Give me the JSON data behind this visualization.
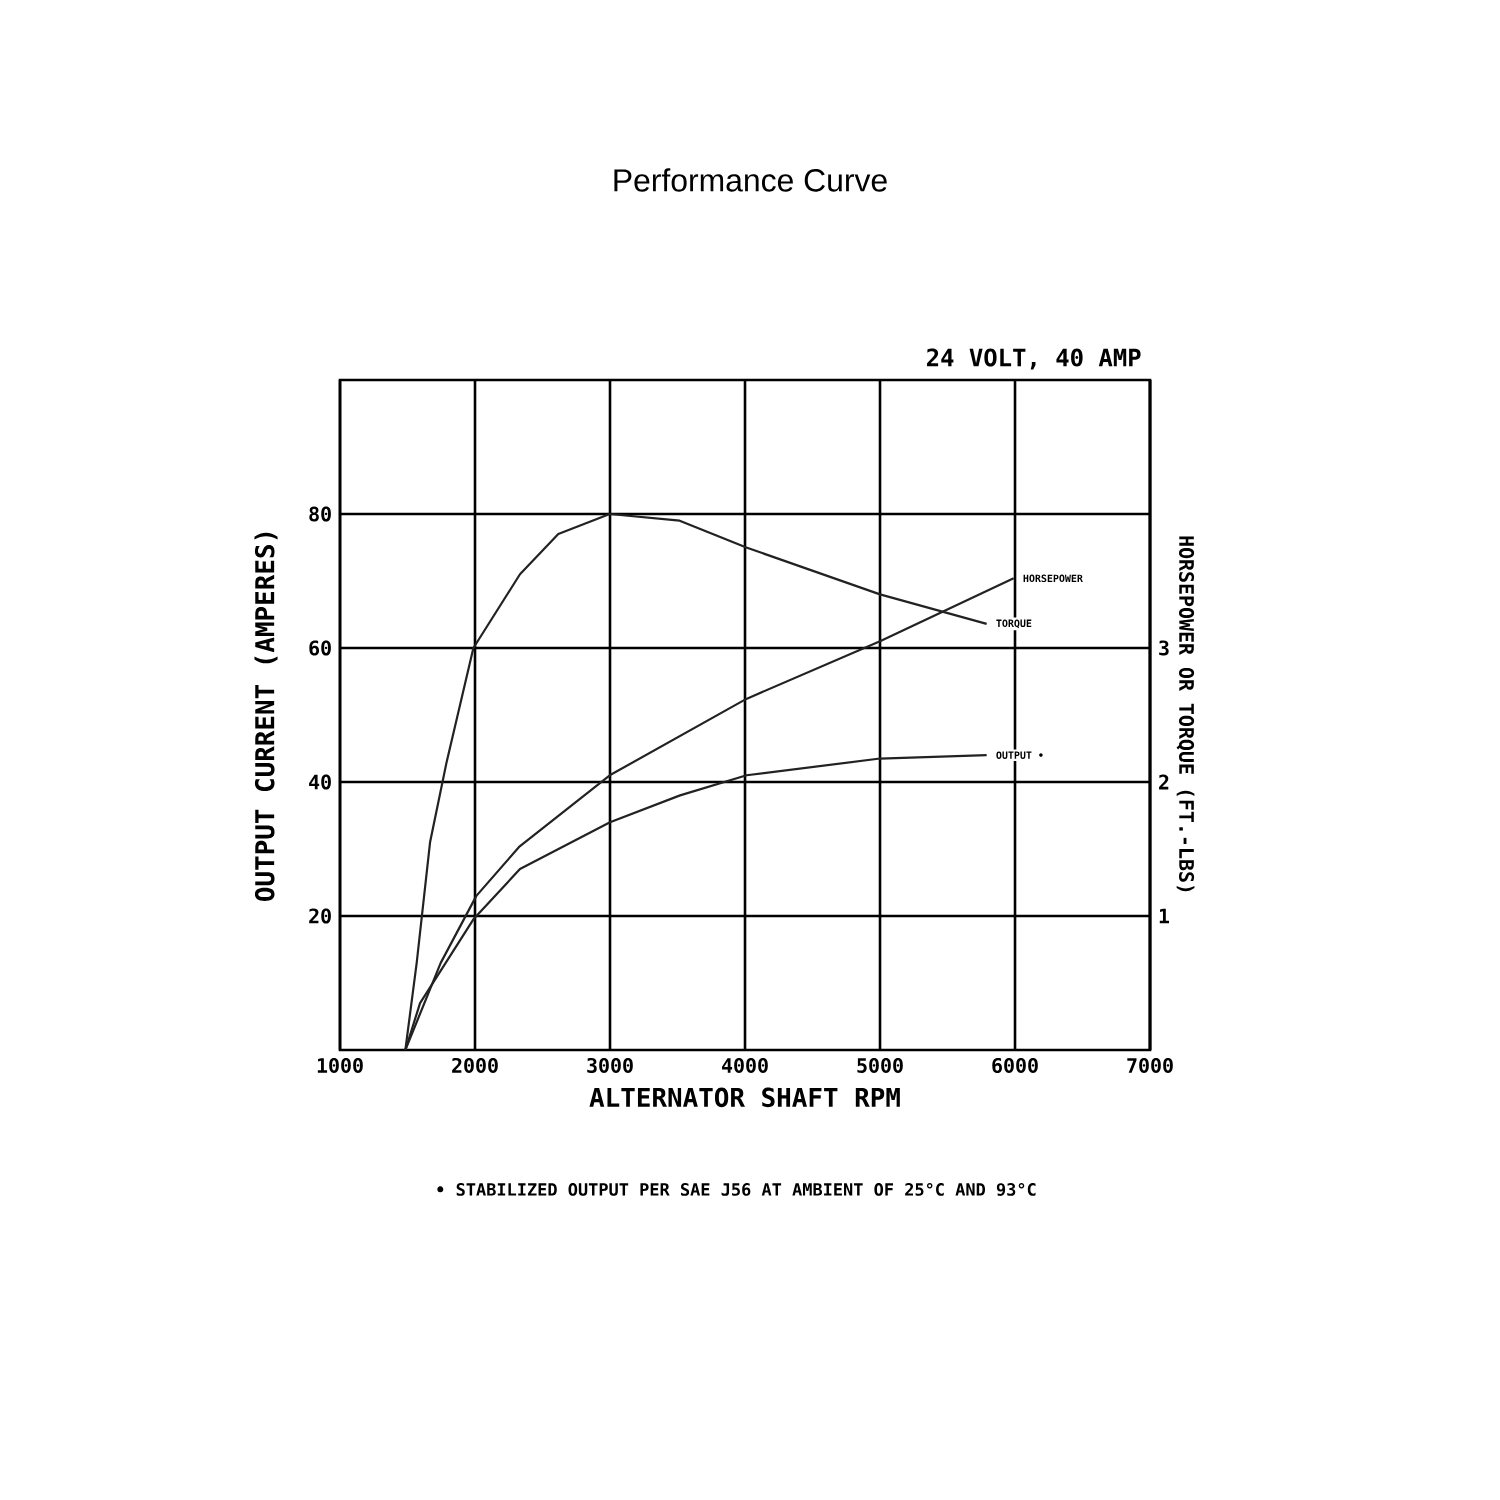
{
  "chart_data": {
    "type": "line",
    "title": "Performance Curve",
    "xlabel": "ALTERNATOR SHAFT RPM",
    "ylabel": "OUTPUT CURRENT (AMPERES)",
    "y2label": "HORSEPOWER OR TORQUE (FT.-LBS)",
    "annotations": [
      "24 VOLT, 40 AMP",
      "• STABILIZED OUTPUT PER SAE J56 AT AMBIENT OF 25°C AND 93°C"
    ],
    "xlim": [
      1000,
      7000
    ],
    "xticks": [
      1000,
      2000,
      3000,
      4000,
      5000,
      6000,
      7000
    ],
    "ylim": [
      0,
      100
    ],
    "yticks": [
      20,
      40,
      60,
      80
    ],
    "y2lim": [
      0,
      5
    ],
    "y2ticks": [
      1,
      2,
      3
    ],
    "grid": true,
    "marker": "none",
    "line_style": "solid",
    "series": [
      {
        "name": "HORSEPOWER",
        "color": "#222222",
        "axis": "y2",
        "x": [
          1484,
          1746,
          2010,
          2331,
          2998,
          4010,
          5000,
          5990
        ],
        "values": [
          0,
          0.65,
          1.15,
          1.52,
          2.05,
          2.62,
          3.05,
          3.52
        ]
      },
      {
        "name": "TORQUE",
        "color": "#222222",
        "axis": "y2",
        "x": [
          1484,
          1568,
          1667,
          1790,
          1988,
          2333,
          2617,
          2998,
          3516,
          4010,
          5000,
          5790
        ],
        "values": [
          0,
          0.65,
          1.55,
          2.15,
          3.0,
          3.55,
          3.85,
          4.0,
          3.95,
          3.75,
          3.4,
          3.18
        ]
      },
      {
        "name": "OUTPUT •",
        "color": "#222222",
        "axis": "y",
        "x": [
          1484,
          1593,
          1988,
          2333,
          3000,
          3519,
          4012,
          5000,
          5790
        ],
        "values": [
          0,
          7,
          19.5,
          27,
          34,
          38,
          41,
          43.5,
          44
        ]
      }
    ]
  }
}
